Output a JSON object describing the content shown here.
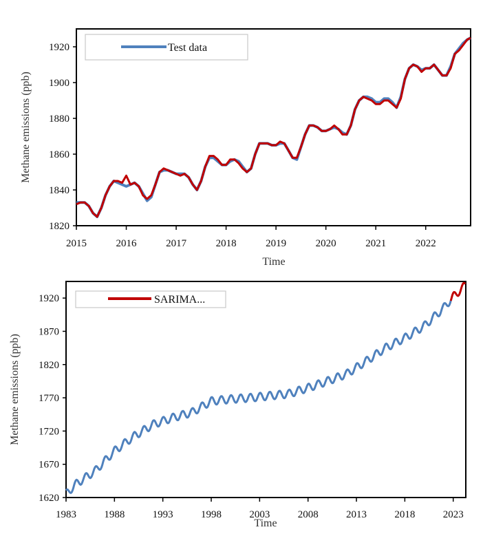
{
  "chart_data": [
    {
      "type": "line",
      "xlabel": "Time",
      "ylabel": "Methane emissions (ppb)",
      "xlim": [
        2015.0,
        2022.9
      ],
      "ylim": [
        1820,
        1930
      ],
      "x_ticks": [
        2015,
        2016,
        2017,
        2018,
        2019,
        2020,
        2021,
        2022
      ],
      "y_ticks": [
        1820,
        1840,
        1860,
        1880,
        1900,
        1920
      ],
      "legend": {
        "position": "top-left",
        "entries": [
          "Test data"
        ]
      },
      "grid": false,
      "colors": {
        "test": "#4f81bd",
        "forecast": "#c00000"
      },
      "series": [
        {
          "name": "Test data",
          "x": [
            2015.0,
            2015.083,
            2015.167,
            2015.25,
            2015.333,
            2015.417,
            2015.5,
            2015.583,
            2015.667,
            2015.75,
            2015.833,
            2015.917,
            2016.0,
            2016.083,
            2016.167,
            2016.25,
            2016.333,
            2016.417,
            2016.5,
            2016.583,
            2016.667,
            2016.75,
            2016.833,
            2016.917,
            2017.0,
            2017.083,
            2017.167,
            2017.25,
            2017.333,
            2017.417,
            2017.5,
            2017.583,
            2017.667,
            2017.75,
            2017.833,
            2017.917,
            2018.0,
            2018.083,
            2018.167,
            2018.25,
            2018.333,
            2018.417,
            2018.5,
            2018.583,
            2018.667,
            2018.75,
            2018.833,
            2018.917,
            2019.0,
            2019.083,
            2019.167,
            2019.25,
            2019.333,
            2019.417,
            2019.5,
            2019.583,
            2019.667,
            2019.75,
            2019.833,
            2019.917,
            2020.0,
            2020.083,
            2020.167,
            2020.25,
            2020.333,
            2020.417,
            2020.5,
            2020.583,
            2020.667,
            2020.75,
            2020.833,
            2020.917,
            2021.0,
            2021.083,
            2021.167,
            2021.25,
            2021.333,
            2021.417,
            2021.5,
            2021.583,
            2021.667,
            2021.75,
            2021.833,
            2021.917,
            2022.0,
            2022.083,
            2022.167,
            2022.25,
            2022.333,
            2022.417,
            2022.5,
            2022.583,
            2022.667,
            2022.75,
            2022.833,
            2022.9
          ],
          "y": [
            1833,
            1833,
            1833,
            1831,
            1827,
            1825,
            1830,
            1837,
            1842,
            1845,
            1844,
            1843,
            1842,
            1843,
            1844,
            1842,
            1838,
            1834,
            1836,
            1843,
            1850,
            1851,
            1851,
            1850,
            1849,
            1849,
            1849,
            1847,
            1843,
            1840,
            1845,
            1853,
            1858,
            1858,
            1856,
            1854,
            1854,
            1856,
            1857,
            1856,
            1853,
            1850,
            1852,
            1860,
            1866,
            1866,
            1866,
            1865,
            1865,
            1866,
            1866,
            1862,
            1858,
            1857,
            1864,
            1871,
            1876,
            1876,
            1875,
            1873,
            1873,
            1874,
            1875,
            1874,
            1872,
            1871,
            1876,
            1885,
            1890,
            1892,
            1892,
            1891,
            1889,
            1889,
            1891,
            1891,
            1889,
            1886,
            1892,
            1902,
            1908,
            1910,
            1909,
            1907,
            1908,
            1908,
            1910,
            1907,
            1904,
            1904,
            1909,
            1916,
            1919,
            1922,
            1924,
            1925
          ]
        },
        {
          "name": "SARIMA...",
          "x": [
            2015.0,
            2015.083,
            2015.167,
            2015.25,
            2015.333,
            2015.417,
            2015.5,
            2015.583,
            2015.667,
            2015.75,
            2015.833,
            2015.917,
            2016.0,
            2016.083,
            2016.167,
            2016.25,
            2016.333,
            2016.417,
            2016.5,
            2016.583,
            2016.667,
            2016.75,
            2016.833,
            2016.917,
            2017.0,
            2017.083,
            2017.167,
            2017.25,
            2017.333,
            2017.417,
            2017.5,
            2017.583,
            2017.667,
            2017.75,
            2017.833,
            2017.917,
            2018.0,
            2018.083,
            2018.167,
            2018.25,
            2018.333,
            2018.417,
            2018.5,
            2018.583,
            2018.667,
            2018.75,
            2018.833,
            2018.917,
            2019.0,
            2019.083,
            2019.167,
            2019.25,
            2019.333,
            2019.417,
            2019.5,
            2019.583,
            2019.667,
            2019.75,
            2019.833,
            2019.917,
            2020.0,
            2020.083,
            2020.167,
            2020.25,
            2020.333,
            2020.417,
            2020.5,
            2020.583,
            2020.667,
            2020.75,
            2020.833,
            2020.917,
            2021.0,
            2021.083,
            2021.167,
            2021.25,
            2021.333,
            2021.417,
            2021.5,
            2021.583,
            2021.667,
            2021.75,
            2021.833,
            2021.917,
            2022.0,
            2022.083,
            2022.167,
            2022.25,
            2022.333,
            2022.417,
            2022.5,
            2022.583,
            2022.667,
            2022.75,
            2022.833,
            2022.9
          ],
          "y": [
            1832,
            1833,
            1833,
            1831,
            1827,
            1825,
            1830,
            1837,
            1842,
            1845,
            1845,
            1844,
            1848,
            1843,
            1844,
            1842,
            1837,
            1835,
            1837,
            1843,
            1850,
            1852,
            1851,
            1850,
            1849,
            1848,
            1849,
            1847,
            1843,
            1840,
            1845,
            1853,
            1859,
            1859,
            1857,
            1854,
            1854,
            1857,
            1857,
            1855,
            1852,
            1850,
            1852,
            1860,
            1866,
            1866,
            1866,
            1865,
            1865,
            1867,
            1866,
            1862,
            1858,
            1858,
            1864,
            1871,
            1876,
            1876,
            1875,
            1873,
            1873,
            1874,
            1876,
            1874,
            1871,
            1871,
            1876,
            1885,
            1890,
            1892,
            1891,
            1890,
            1888,
            1888,
            1890,
            1890,
            1888,
            1886,
            1891,
            1902,
            1908,
            1910,
            1909,
            1906,
            1908,
            1908,
            1910,
            1907,
            1904,
            1904,
            1908,
            1916,
            1918,
            1921,
            1924,
            1925
          ]
        }
      ]
    },
    {
      "type": "line",
      "xlabel": "Time",
      "ylabel": "Methane emissions (ppb)",
      "xlim": [
        1983,
        2024.3
      ],
      "ylim": [
        1620,
        1945
      ],
      "x_ticks": [
        1983,
        1988,
        1993,
        1998,
        2003,
        2008,
        2013,
        2018,
        2023
      ],
      "y_ticks": [
        1620,
        1670,
        1720,
        1770,
        1820,
        1870,
        1920
      ],
      "legend": {
        "position": "top-left",
        "entries": [
          "SARIMA..."
        ]
      },
      "grid": false,
      "colors": {
        "historical": "#4f81bd",
        "forecast": "#c00000"
      },
      "trend_anchors": {
        "x": [
          1983,
          1984,
          1986,
          1988,
          1990,
          1992,
          1994,
          1996,
          1998,
          2000,
          2002,
          2004,
          2006,
          2008,
          2010,
          2012,
          2014,
          2016,
          2018,
          2020,
          2022,
          2023,
          2024.3
        ],
        "y": [
          1625,
          1640,
          1660,
          1690,
          1712,
          1730,
          1740,
          1748,
          1765,
          1768,
          1770,
          1773,
          1776,
          1785,
          1795,
          1806,
          1825,
          1845,
          1860,
          1878,
          1905,
          1922,
          1940
        ]
      },
      "seasonal_amplitude_ppb": 6,
      "forecast_start": 2022.8
    }
  ]
}
